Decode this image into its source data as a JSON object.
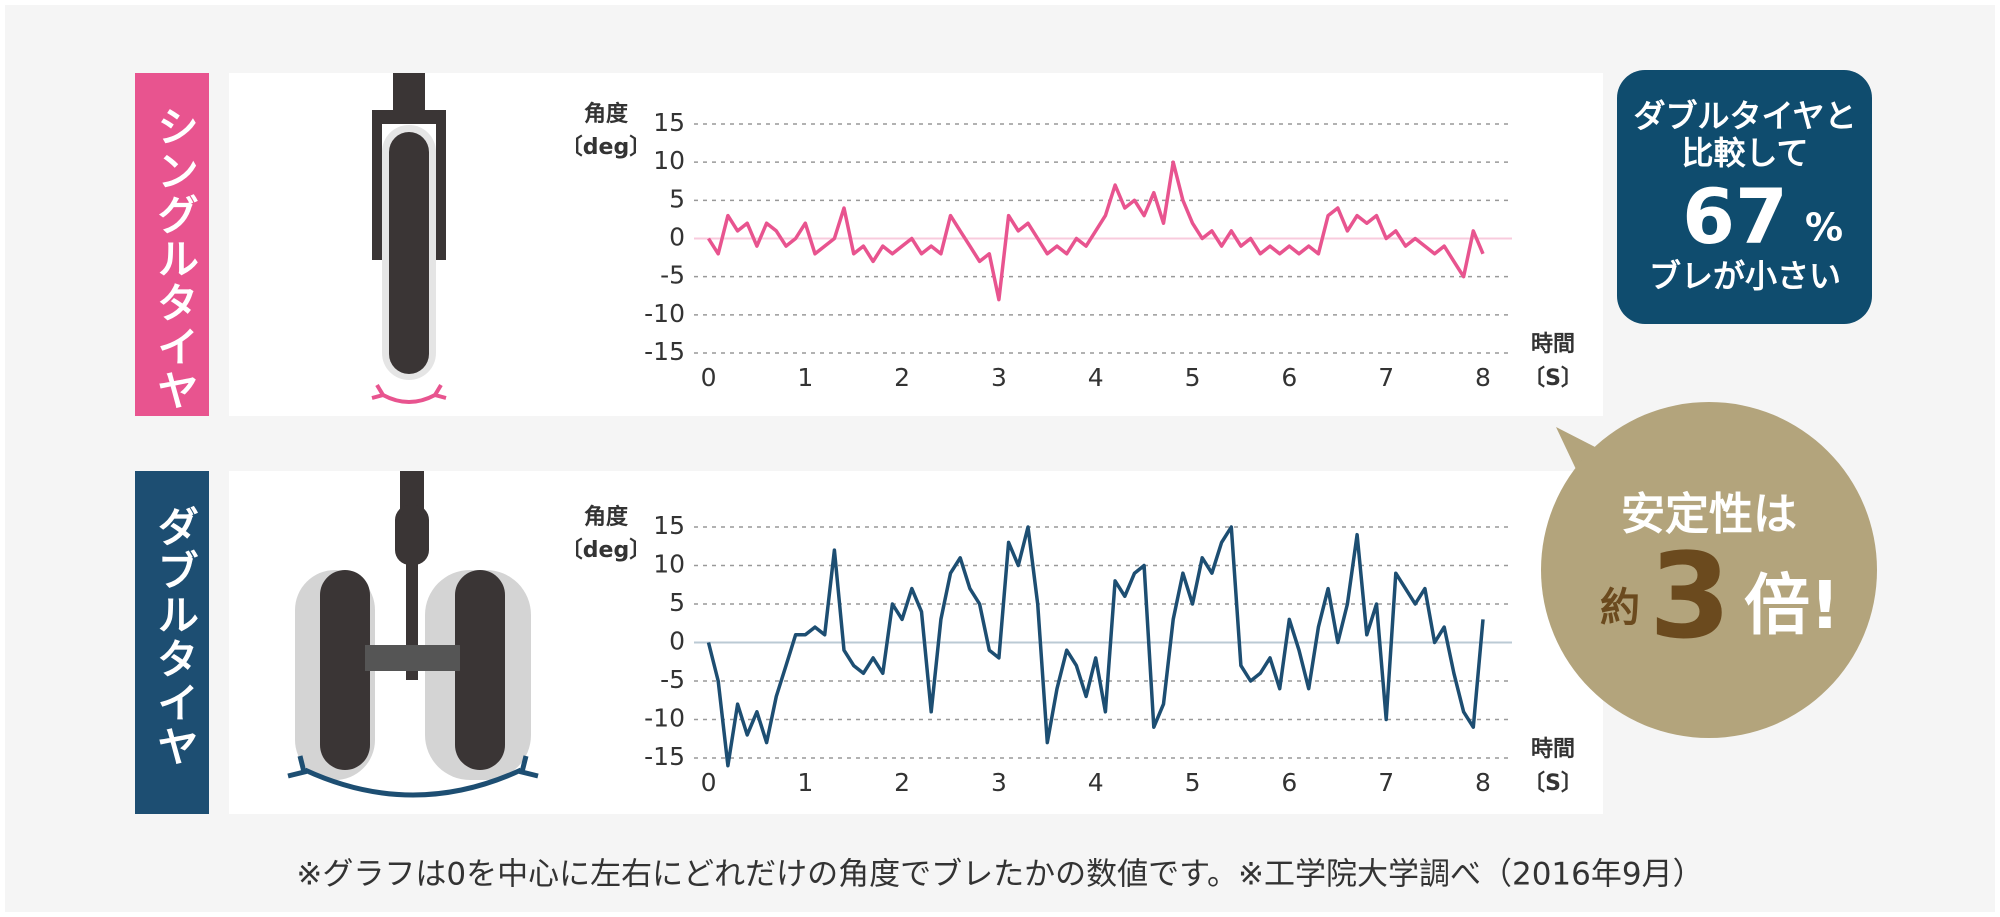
{
  "chart_data": [
    {
      "type": "line",
      "title": "シングルタイヤ",
      "ylabel": [
        "角度",
        "〔deg〕"
      ],
      "xlabel": [
        "時間",
        "〔S〕"
      ],
      "x": [
        0,
        0.1,
        0.2,
        0.3,
        0.4,
        0.5,
        0.6,
        0.7,
        0.8,
        0.9,
        1,
        1.1,
        1.2,
        1.3,
        1.4,
        1.5,
        1.6,
        1.7,
        1.8,
        1.9,
        2,
        2.1,
        2.2,
        2.3,
        2.4,
        2.5,
        2.6,
        2.7,
        2.8,
        2.9,
        3,
        3.1,
        3.2,
        3.3,
        3.4,
        3.5,
        3.6,
        3.7,
        3.8,
        3.9,
        4,
        4.1,
        4.2,
        4.3,
        4.4,
        4.5,
        4.6,
        4.7,
        4.8,
        4.9,
        5,
        5.1,
        5.2,
        5.3,
        5.4,
        5.5,
        5.6,
        5.7,
        5.8,
        5.9,
        6,
        6.1,
        6.2,
        6.3,
        6.4,
        6.5,
        6.6,
        6.7,
        6.8,
        6.9,
        7,
        7.1,
        7.2,
        7.3,
        7.4,
        7.5,
        7.6,
        7.7,
        7.8,
        7.9,
        8
      ],
      "series": [
        {
          "color": "#e8548f",
          "values": [
            0,
            -2,
            3,
            1,
            2,
            -1,
            2,
            1,
            -1,
            0,
            2,
            -2,
            -1,
            0,
            4,
            -2,
            -1,
            -3,
            -1,
            -2,
            -1,
            0,
            -2,
            -1,
            -2,
            3,
            1,
            -1,
            -3,
            -2,
            -8,
            3,
            1,
            2,
            0,
            -2,
            -1,
            -2,
            0,
            -1,
            1,
            3,
            7,
            4,
            5,
            3,
            6,
            2,
            10,
            5,
            2,
            0,
            1,
            -1,
            1,
            -1,
            0,
            -2,
            -1,
            -2,
            -1,
            -2,
            -1,
            -2,
            3,
            4,
            1,
            3,
            2,
            3,
            0,
            1,
            -1,
            0,
            -1,
            -2,
            -1,
            -3,
            -5,
            1,
            -2
          ]
        }
      ],
      "xlim": [
        -0.15,
        8.3
      ],
      "ylim": [
        -15,
        15
      ],
      "xticks": [
        0,
        1,
        2,
        3,
        4,
        5,
        6,
        7,
        8
      ],
      "yticks": [
        15,
        10,
        5,
        0,
        -5,
        -10,
        -15
      ],
      "grid": true
    },
    {
      "type": "line",
      "title": "ダブルタイヤ",
      "ylabel": [
        "角度",
        "〔deg〕"
      ],
      "xlabel": [
        "時間",
        "〔S〕"
      ],
      "x": [
        0,
        0.1,
        0.2,
        0.3,
        0.4,
        0.5,
        0.6,
        0.7,
        0.8,
        0.9,
        1,
        1.1,
        1.2,
        1.3,
        1.4,
        1.5,
        1.6,
        1.7,
        1.8,
        1.9,
        2,
        2.1,
        2.2,
        2.3,
        2.4,
        2.5,
        2.6,
        2.7,
        2.8,
        2.9,
        3,
        3.1,
        3.2,
        3.3,
        3.4,
        3.5,
        3.6,
        3.7,
        3.8,
        3.9,
        4,
        4.1,
        4.2,
        4.3,
        4.4,
        4.5,
        4.6,
        4.7,
        4.8,
        4.9,
        5,
        5.1,
        5.2,
        5.3,
        5.4,
        5.5,
        5.6,
        5.7,
        5.8,
        5.9,
        6,
        6.1,
        6.2,
        6.3,
        6.4,
        6.5,
        6.6,
        6.7,
        6.8,
        6.9,
        7,
        7.1,
        7.2,
        7.3,
        7.4,
        7.5,
        7.6,
        7.7,
        7.8,
        7.9,
        8
      ],
      "series": [
        {
          "color": "#1d4e72",
          "values": [
            0,
            -5,
            -16,
            -8,
            -12,
            -9,
            -13,
            -7,
            -3,
            1,
            1,
            2,
            1,
            12,
            -1,
            -3,
            -4,
            -2,
            -4,
            5,
            3,
            7,
            4,
            -9,
            3,
            9,
            11,
            7,
            5,
            -1,
            -2,
            13,
            10,
            15,
            5,
            -13,
            -6,
            -1,
            -3,
            -7,
            -2,
            -9,
            8,
            6,
            9,
            10,
            -11,
            -8,
            3,
            9,
            5,
            11,
            9,
            13,
            15,
            -3,
            -5,
            -4,
            -2,
            -6,
            3,
            -1,
            -6,
            2,
            7,
            0,
            5,
            14,
            1,
            5,
            -10,
            9,
            7,
            5,
            7,
            0,
            2,
            -4,
            -9,
            -11,
            3
          ]
        }
      ],
      "xlim": [
        -0.15,
        8.3
      ],
      "ylim": [
        -15,
        15
      ],
      "xticks": [
        0,
        1,
        2,
        3,
        4,
        5,
        6,
        7,
        8
      ],
      "yticks": [
        15,
        10,
        5,
        0,
        -5,
        -10,
        -15
      ],
      "grid": true
    }
  ],
  "badge": {
    "lines": [
      "ダブルタイヤと",
      "比較して"
    ],
    "number": "67",
    "unit": "%",
    "tail": "ブレが小さい"
  },
  "bubble": {
    "line1": "安定性は",
    "prefix": "約",
    "number": "3",
    "suffix": "倍!"
  },
  "footnote": "※グラフは0を中心に左右にどれだけの角度でブレたかの数値です。※工学院大学調べ（2016年9月）"
}
